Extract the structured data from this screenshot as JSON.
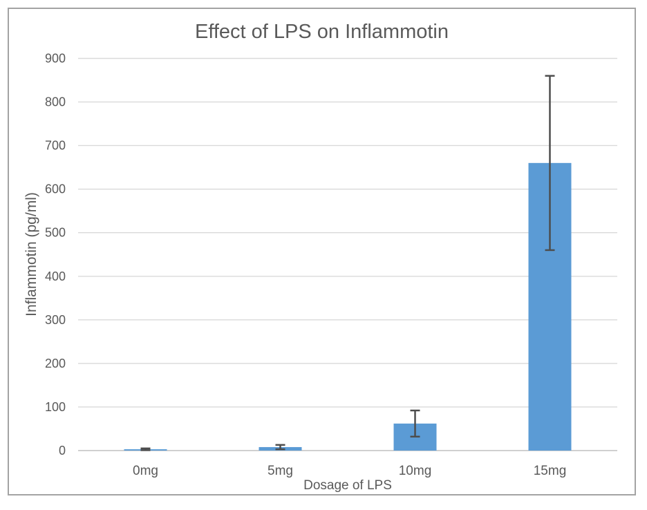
{
  "chart_data": {
    "type": "bar",
    "title": "Effect of LPS on Inflammotin",
    "xlabel": "Dosage of LPS",
    "ylabel": "Inflammotin (pg/ml)",
    "categories": [
      "0mg",
      "5mg",
      "10mg",
      "15mg"
    ],
    "values": [
      3,
      8,
      62,
      660
    ],
    "errors": [
      2,
      5,
      30,
      200
    ],
    "yticks": [
      0,
      100,
      200,
      300,
      400,
      500,
      600,
      700,
      800,
      900
    ],
    "ylim": [
      0,
      900
    ],
    "grid": true,
    "legend": false,
    "bar_color": "#5B9BD5",
    "error_bar_color": "#4D4D4D",
    "gridline_color": "#D9D9D9",
    "axis_line_color": "#C9C9C9",
    "text_color": "#595959",
    "frame_border_color": "#A3A3A3"
  }
}
